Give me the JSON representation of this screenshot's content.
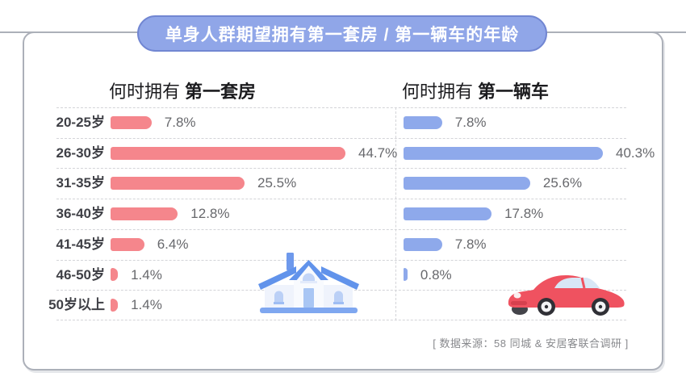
{
  "banner": {
    "title": "单身人群期望拥有第一套房 / 第一辆车的年龄",
    "fill": "#90A6E8",
    "border": "#7186D2"
  },
  "charts": {
    "house": {
      "heading_prefix": "何时拥有",
      "heading_bold": "第一套房"
    },
    "car": {
      "heading_prefix": "何时拥有",
      "heading_bold": "第一辆车"
    }
  },
  "icons": {
    "house": "house-illustration",
    "car": "red-sports-car-illustration"
  },
  "footer": {
    "source": "[ 数据来源：58 同城 & 安居客联合调研 ]"
  },
  "chart_data": [
    {
      "type": "bar",
      "orientation": "horizontal",
      "title": "何时拥有 第一套房",
      "unit": "%",
      "bar_color": "#F5868C",
      "categories": [
        "20-25岁",
        "26-30岁",
        "31-35岁",
        "36-40岁",
        "41-45岁",
        "46-50岁",
        "50岁以上"
      ],
      "values": [
        7.8,
        44.7,
        25.5,
        12.8,
        6.4,
        1.4,
        1.4
      ],
      "value_labels": [
        "7.8%",
        "44.7%",
        "25.5%",
        "12.8%",
        "6.4%",
        "1.4%",
        "1.4%"
      ],
      "xlim": [
        0,
        50
      ],
      "grid": "dashed-row-separators",
      "legend": "none"
    },
    {
      "type": "bar",
      "orientation": "horizontal",
      "title": "何时拥有 第一辆车",
      "unit": "%",
      "bar_color": "#8EA9EB",
      "categories": [
        "20-25岁",
        "26-30岁",
        "31-35岁",
        "36-40岁",
        "41-45岁",
        "46-50岁",
        "50岁以上"
      ],
      "values": [
        7.8,
        40.3,
        25.6,
        17.8,
        7.8,
        0.8,
        null
      ],
      "value_labels": [
        "7.8%",
        "40.3%",
        "25.6%",
        "17.8%",
        "7.8%",
        "0.8%",
        ""
      ],
      "xlim": [
        0,
        45
      ],
      "grid": "dashed-row-separators",
      "legend": "none"
    }
  ]
}
